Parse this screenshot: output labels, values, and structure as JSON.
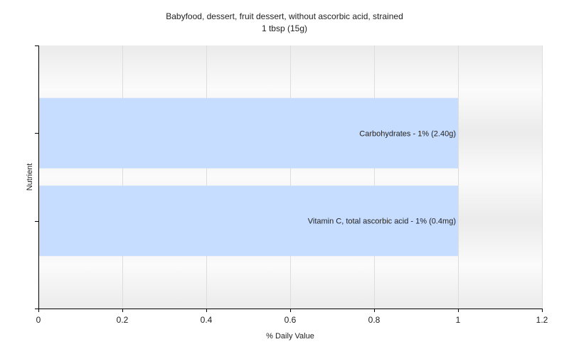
{
  "chart_data": {
    "type": "bar",
    "orientation": "horizontal",
    "title": "Babyfood, dessert, fruit dessert, without ascorbic acid, strained",
    "subtitle": "1 tbsp (15g)",
    "xlabel": "% Daily Value",
    "ylabel": "Nutrient",
    "xlim": [
      0,
      1.2
    ],
    "xticks": [
      "0",
      "0.2",
      "0.4",
      "0.6",
      "0.8",
      "1",
      "1.2"
    ],
    "grid": true,
    "legend": "none",
    "bar_color": "#c6ddff",
    "categories": [
      "Carbohydrates",
      "Vitamin C, total ascorbic acid"
    ],
    "values": [
      1,
      1
    ],
    "data_labels": [
      "Carbohydrates - 1% (2.40g)",
      "Vitamin C, total ascorbic acid - 1% (0.4mg)"
    ]
  }
}
